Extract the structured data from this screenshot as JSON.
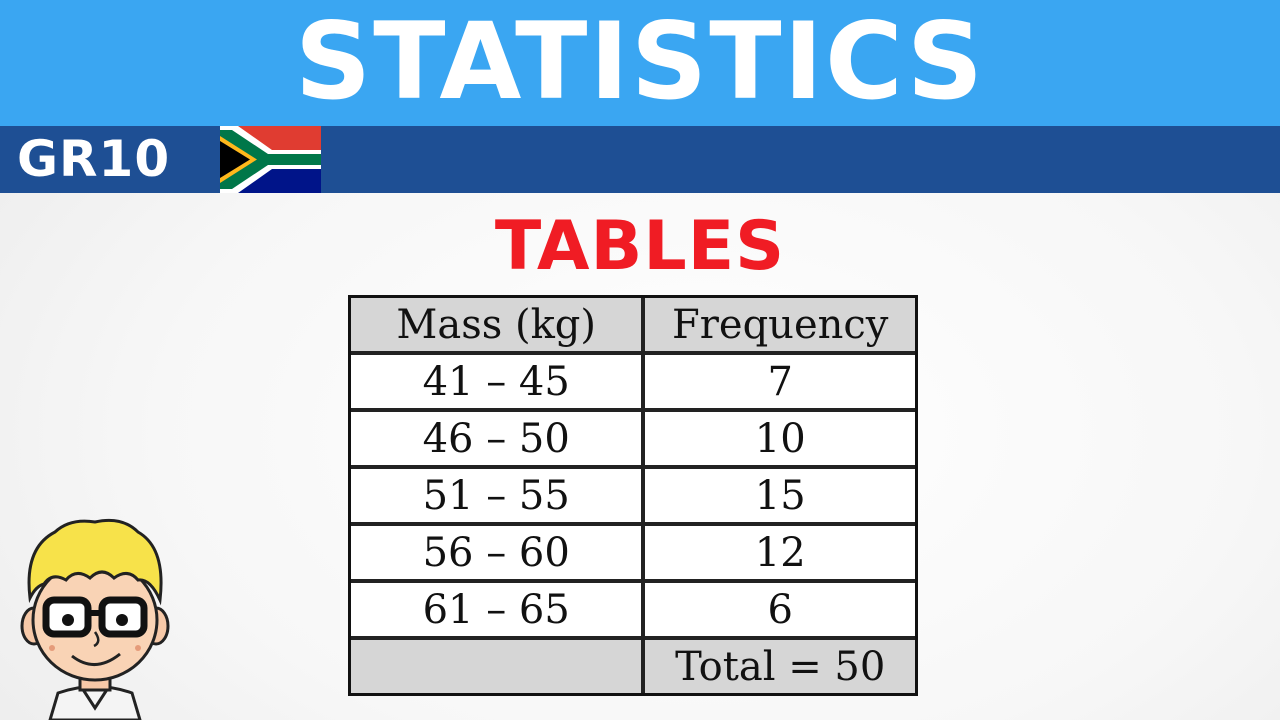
{
  "header": {
    "title": "STATISTICS",
    "grade": "GR10",
    "flag_icon": "south-africa-flag-icon"
  },
  "subtitle": "TABLES",
  "colors": {
    "banner": "#3aa6f2",
    "grade_bar": "#1e4f94",
    "subtitle": "#f01c24"
  },
  "table": {
    "headers": [
      "Mass (kg)",
      "Frequency"
    ],
    "rows": [
      [
        "41 – 45",
        "7"
      ],
      [
        "46 – 50",
        "10"
      ],
      [
        "51 – 55",
        "15"
      ],
      [
        "56 – 60",
        "12"
      ],
      [
        "61 – 65",
        "6"
      ]
    ],
    "total": "Total = 50"
  },
  "mascot_icon": "cartoon-boy-with-glasses"
}
